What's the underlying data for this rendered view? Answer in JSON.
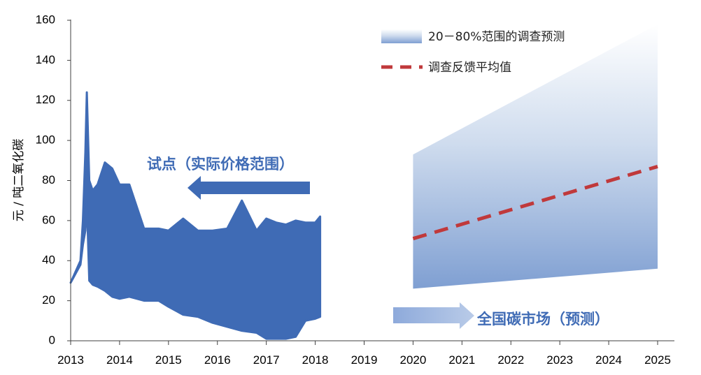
{
  "chart_data": {
    "type": "area",
    "title": "",
    "xlabel": "",
    "ylabel": "元 / 吨二氧化碳",
    "xlim": [
      2013,
      2025
    ],
    "ylim": [
      0,
      160
    ],
    "x_ticks": [
      "2013",
      "2014",
      "2015",
      "2016",
      "2017",
      "2018",
      "2019",
      "2020",
      "2021",
      "2022",
      "2023",
      "2024",
      "2025"
    ],
    "y_ticks": [
      "0",
      "20",
      "40",
      "60",
      "80",
      "100",
      "120",
      "140",
      "160"
    ],
    "grid": false,
    "legend_position": "top-right",
    "series": [
      {
        "name": "试点实际价格范围",
        "kind": "actual_range",
        "color": "#3f6bb5",
        "x": [
          2013.0,
          2013.2,
          2013.25,
          2013.3,
          2013.33,
          2013.38,
          2013.45,
          2013.55,
          2013.7,
          2013.85,
          2014.0,
          2014.2,
          2014.5,
          2014.8,
          2015.0,
          2015.3,
          2015.6,
          2015.9,
          2016.2,
          2016.5,
          2016.8,
          2017.0,
          2017.2,
          2017.4,
          2017.6,
          2017.8,
          2018.0,
          2018.1
        ],
        "high": [
          29,
          40,
          60,
          94,
          124,
          80,
          75,
          78,
          89,
          86,
          78,
          78,
          56,
          56,
          55,
          61,
          55,
          55,
          56,
          70,
          55,
          61,
          59,
          58,
          60,
          59,
          59,
          62
        ],
        "low": [
          29,
          38,
          48,
          55,
          70,
          30,
          28,
          27,
          25,
          22,
          21,
          22,
          20,
          20,
          17,
          13,
          12,
          9,
          7,
          5,
          4,
          1,
          1,
          1,
          2,
          10,
          11,
          12
        ]
      },
      {
        "name": "20－80%范围的调查预测",
        "kind": "forecast_range",
        "color": "#7f9fd2",
        "x": [
          2020,
          2025
        ],
        "low": [
          26,
          36
        ],
        "high": [
          93,
          158
        ]
      },
      {
        "name": "调查反馈平均值",
        "kind": "mean_line",
        "color": "#c0393b",
        "x": [
          2020,
          2025
        ],
        "values": [
          51,
          87
        ]
      }
    ],
    "legend": [
      {
        "label": "20－80%范围的调查预测",
        "style": "gradient-box"
      },
      {
        "label": "调查反馈平均值",
        "style": "dashed-line"
      }
    ],
    "annotations": [
      {
        "text": "试点（实际价格范围）",
        "arrow": "left"
      },
      {
        "text": "全国碳市场（预测）",
        "arrow": "right"
      }
    ]
  }
}
